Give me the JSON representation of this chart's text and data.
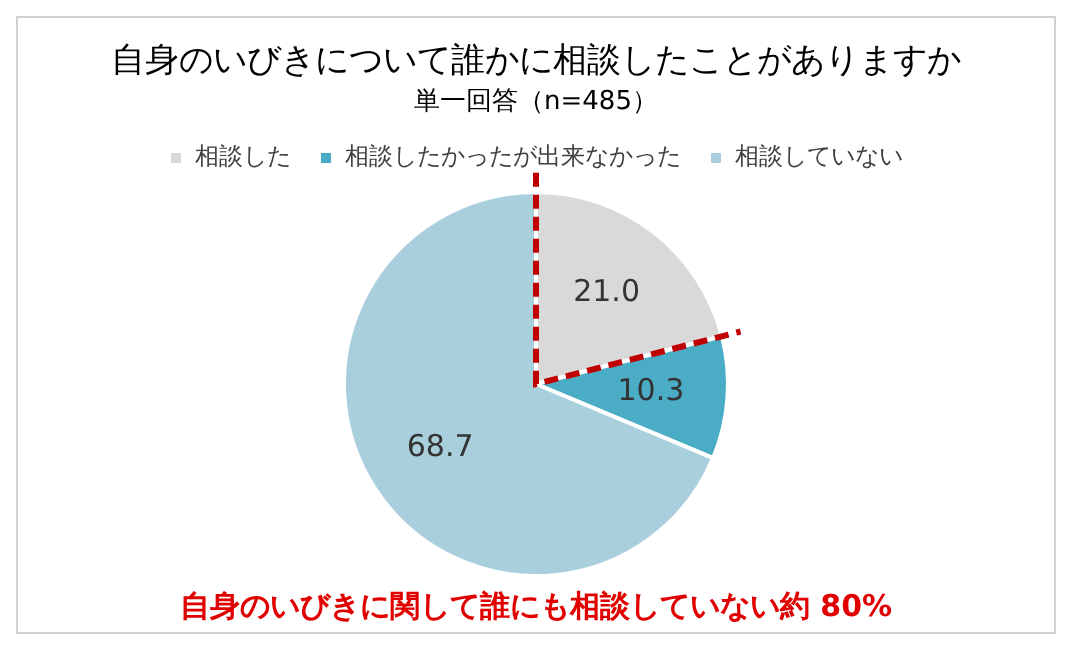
{
  "chart_data": {
    "type": "pie",
    "title": "自身のいびきについて誰かに相談したことがありますか",
    "subtitle": "単一回答（n=485）",
    "categories": [
      "相談した",
      "相談したかったが出来なかった",
      "相談していない"
    ],
    "values": [
      21.0,
      10.3,
      68.7
    ],
    "colors": [
      "#d9d9d9",
      "#4bacc6",
      "#a9cfdc"
    ],
    "value_labels": [
      "21.0",
      "10.3",
      "68.7"
    ],
    "legend": "top",
    "annotations": [
      "自身のいびきに関して誰にも相談していない約 80%"
    ]
  }
}
